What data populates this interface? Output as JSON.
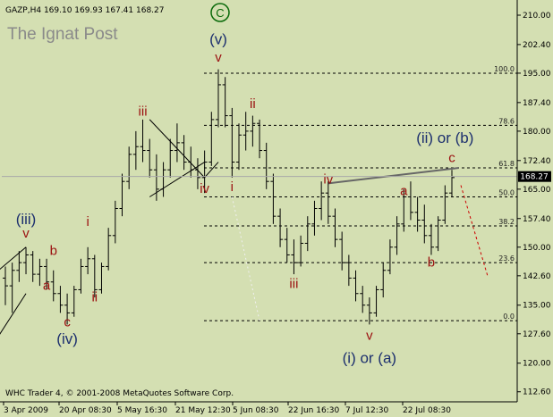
{
  "symbol_header": "GAZP,H4  169.10 169.93 167.41 168.27",
  "brand": "The Ignat Post",
  "copyright": "WHC Trader 4, © 2001-2008 MetaQuotes Software Corp.",
  "colors": {
    "background": "#d4dfb2",
    "bars": "#000000",
    "wave_red": "#9b1010",
    "wave_blue": "#1c2f6e",
    "wave_green": "#0a6a0a",
    "fib_lines": "#000000",
    "projection": "#cc0000",
    "price_box": "#000000"
  },
  "chart_data": {
    "type": "candlestick",
    "symbol": "GAZP",
    "timeframe": "H4",
    "last_price": "168.27",
    "ylim": [
      110,
      213
    ],
    "y_ticks": [
      "210.00",
      "202.40",
      "195.00",
      "187.40",
      "180.00",
      "172.40",
      "165.00",
      "157.40",
      "150.00",
      "142.60",
      "135.00",
      "127.60",
      "120.00",
      "112.60"
    ],
    "x_ticks": [
      "3 Apr 2009",
      "20 Apr 08:30",
      "5 May 16:30",
      "21 May 12:30",
      "5 Jun 08:30",
      "22 Jun 16:30",
      "7 Jul 12:30",
      "22 Jul 08:30"
    ],
    "fib_levels": [
      {
        "label": "100.0",
        "price": 195.0
      },
      {
        "label": "78.6",
        "price": 181.5
      },
      {
        "label": "61.8",
        "price": 170.5
      },
      {
        "label": "50.0",
        "price": 163.0
      },
      {
        "label": "38.2",
        "price": 155.5
      },
      {
        "label": "23.6",
        "price": 146.0
      },
      {
        "label": "0.0",
        "price": 131.0
      }
    ],
    "wave_labels": [
      {
        "text": "(iii)",
        "color": "blue",
        "bar": 3,
        "price": 156
      },
      {
        "text": "v",
        "color": "red",
        "bar": 3,
        "price": 152.5
      },
      {
        "text": "b",
        "color": "red",
        "bar": 7,
        "price": 148
      },
      {
        "text": "a",
        "color": "red",
        "bar": 6,
        "price": 139
      },
      {
        "text": "c",
        "color": "red",
        "bar": 9,
        "price": 129.5
      },
      {
        "text": "(iv)",
        "color": "blue",
        "bar": 9,
        "price": 125
      },
      {
        "text": "i",
        "color": "red",
        "bar": 12,
        "price": 155.5
      },
      {
        "text": "ii",
        "color": "red",
        "bar": 13,
        "price": 136
      },
      {
        "text": "iii",
        "color": "red",
        "bar": 20,
        "price": 184
      },
      {
        "text": "iv",
        "color": "red",
        "bar": 29,
        "price": 164
      },
      {
        "text": "v",
        "color": "red",
        "bar": 31,
        "price": 198
      },
      {
        "text": "(v)",
        "color": "blue",
        "bar": 31,
        "price": 202.5
      },
      {
        "text": "ii",
        "color": "red",
        "bar": 36,
        "price": 186
      },
      {
        "text": "i",
        "color": "red",
        "bar": 33,
        "price": 164.5
      },
      {
        "text": "iii",
        "color": "red",
        "bar": 42,
        "price": 139.5
      },
      {
        "text": "iv",
        "color": "red",
        "bar": 47,
        "price": 166.5
      },
      {
        "text": "v",
        "color": "red",
        "bar": 53,
        "price": 126
      },
      {
        "text": "(i) or (a)",
        "color": "blue",
        "bar": 53,
        "price": 120
      },
      {
        "text": "a",
        "color": "red",
        "bar": 58,
        "price": 163.5
      },
      {
        "text": "b",
        "color": "red",
        "bar": 62,
        "price": 145
      },
      {
        "text": "c",
        "color": "red",
        "bar": 65,
        "price": 172
      },
      {
        "text": "(ii) or (b)",
        "color": "blue",
        "bar": 64,
        "price": 177
      },
      {
        "text": "C",
        "color": "green",
        "bar": 31,
        "price": 213
      }
    ],
    "bars": [
      {
        "o": 142,
        "h": 145,
        "l": 135,
        "c": 140
      },
      {
        "o": 140,
        "h": 146,
        "l": 133,
        "c": 144
      },
      {
        "o": 144,
        "h": 149,
        "l": 141,
        "c": 146
      },
      {
        "o": 146,
        "h": 150,
        "l": 143,
        "c": 148
      },
      {
        "o": 148,
        "h": 149,
        "l": 141,
        "c": 143
      },
      {
        "o": 143,
        "h": 147,
        "l": 140,
        "c": 145
      },
      {
        "o": 145,
        "h": 147,
        "l": 139,
        "c": 141
      },
      {
        "o": 141,
        "h": 144,
        "l": 136,
        "c": 138
      },
      {
        "o": 138,
        "h": 140,
        "l": 133,
        "c": 135
      },
      {
        "o": 135,
        "h": 138,
        "l": 130,
        "c": 133
      },
      {
        "o": 133,
        "h": 140,
        "l": 132,
        "c": 139
      },
      {
        "o": 139,
        "h": 147,
        "l": 138,
        "c": 145
      },
      {
        "o": 145,
        "h": 150,
        "l": 143,
        "c": 147
      },
      {
        "o": 147,
        "h": 148,
        "l": 137,
        "c": 139
      },
      {
        "o": 139,
        "h": 146,
        "l": 138,
        "c": 145
      },
      {
        "o": 145,
        "h": 155,
        "l": 144,
        "c": 153
      },
      {
        "o": 153,
        "h": 162,
        "l": 151,
        "c": 160
      },
      {
        "o": 160,
        "h": 169,
        "l": 158,
        "c": 167
      },
      {
        "o": 167,
        "h": 176,
        "l": 165,
        "c": 174
      },
      {
        "o": 174,
        "h": 180,
        "l": 170,
        "c": 176
      },
      {
        "o": 176,
        "h": 183,
        "l": 172,
        "c": 175
      },
      {
        "o": 175,
        "h": 178,
        "l": 168,
        "c": 170
      },
      {
        "o": 170,
        "h": 174,
        "l": 162,
        "c": 165
      },
      {
        "o": 165,
        "h": 172,
        "l": 163,
        "c": 170
      },
      {
        "o": 170,
        "h": 178,
        "l": 168,
        "c": 175
      },
      {
        "o": 175,
        "h": 182,
        "l": 172,
        "c": 177
      },
      {
        "o": 177,
        "h": 179,
        "l": 170,
        "c": 172
      },
      {
        "o": 172,
        "h": 176,
        "l": 168,
        "c": 170
      },
      {
        "o": 170,
        "h": 173,
        "l": 165,
        "c": 168
      },
      {
        "o": 168,
        "h": 175,
        "l": 164,
        "c": 172
      },
      {
        "o": 172,
        "h": 185,
        "l": 171,
        "c": 183
      },
      {
        "o": 183,
        "h": 196,
        "l": 181,
        "c": 192
      },
      {
        "o": 192,
        "h": 194,
        "l": 181,
        "c": 184
      },
      {
        "o": 184,
        "h": 186,
        "l": 168,
        "c": 172
      },
      {
        "o": 172,
        "h": 182,
        "l": 170,
        "c": 179
      },
      {
        "o": 179,
        "h": 185,
        "l": 175,
        "c": 180
      },
      {
        "o": 180,
        "h": 184,
        "l": 176,
        "c": 182
      },
      {
        "o": 182,
        "h": 183,
        "l": 173,
        "c": 175
      },
      {
        "o": 175,
        "h": 177,
        "l": 165,
        "c": 167
      },
      {
        "o": 167,
        "h": 169,
        "l": 156,
        "c": 158
      },
      {
        "o": 158,
        "h": 160,
        "l": 150,
        "c": 152
      },
      {
        "o": 152,
        "h": 155,
        "l": 146,
        "c": 148
      },
      {
        "o": 148,
        "h": 152,
        "l": 143,
        "c": 146
      },
      {
        "o": 146,
        "h": 153,
        "l": 145,
        "c": 151
      },
      {
        "o": 151,
        "h": 158,
        "l": 149,
        "c": 156
      },
      {
        "o": 156,
        "h": 162,
        "l": 153,
        "c": 160
      },
      {
        "o": 160,
        "h": 167,
        "l": 157,
        "c": 164
      },
      {
        "o": 164,
        "h": 167,
        "l": 156,
        "c": 158
      },
      {
        "o": 158,
        "h": 160,
        "l": 150,
        "c": 152
      },
      {
        "o": 152,
        "h": 154,
        "l": 144,
        "c": 146
      },
      {
        "o": 146,
        "h": 148,
        "l": 140,
        "c": 142
      },
      {
        "o": 142,
        "h": 144,
        "l": 136,
        "c": 138
      },
      {
        "o": 138,
        "h": 140,
        "l": 133,
        "c": 135
      },
      {
        "o": 135,
        "h": 137,
        "l": 130,
        "c": 133
      },
      {
        "o": 133,
        "h": 140,
        "l": 132,
        "c": 139
      },
      {
        "o": 139,
        "h": 146,
        "l": 137,
        "c": 144
      },
      {
        "o": 144,
        "h": 152,
        "l": 143,
        "c": 150
      },
      {
        "o": 150,
        "h": 158,
        "l": 148,
        "c": 156
      },
      {
        "o": 156,
        "h": 165,
        "l": 154,
        "c": 163
      },
      {
        "o": 163,
        "h": 167,
        "l": 157,
        "c": 159
      },
      {
        "o": 159,
        "h": 163,
        "l": 154,
        "c": 157
      },
      {
        "o": 157,
        "h": 161,
        "l": 151,
        "c": 153
      },
      {
        "o": 153,
        "h": 156,
        "l": 148,
        "c": 150
      },
      {
        "o": 150,
        "h": 158,
        "l": 149,
        "c": 157
      },
      {
        "o": 157,
        "h": 166,
        "l": 156,
        "c": 164
      },
      {
        "o": 164,
        "h": 170,
        "l": 163,
        "c": 168
      }
    ]
  }
}
